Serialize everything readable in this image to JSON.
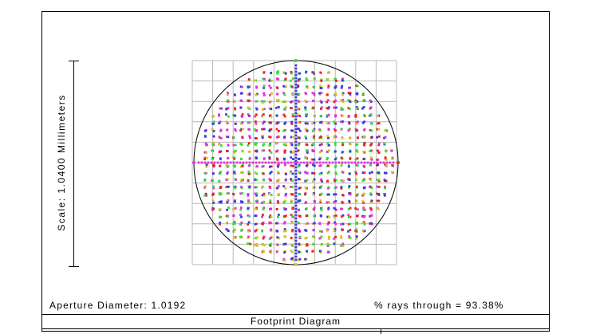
{
  "scale_label": "Scale: 1.0400 Millimeters",
  "aperture_label": "Aperture Diameter: 1.0192",
  "rays_label": "% rays through = 93.38%",
  "title": "Footprint Diagram",
  "colors": {
    "field1": "#e8241c",
    "field2": "#3a3adf",
    "field3": "#33e033",
    "field4": "#e032e0",
    "field5": "#d8c020",
    "grid": "#b8b8b8",
    "outline": "#000000"
  }
}
